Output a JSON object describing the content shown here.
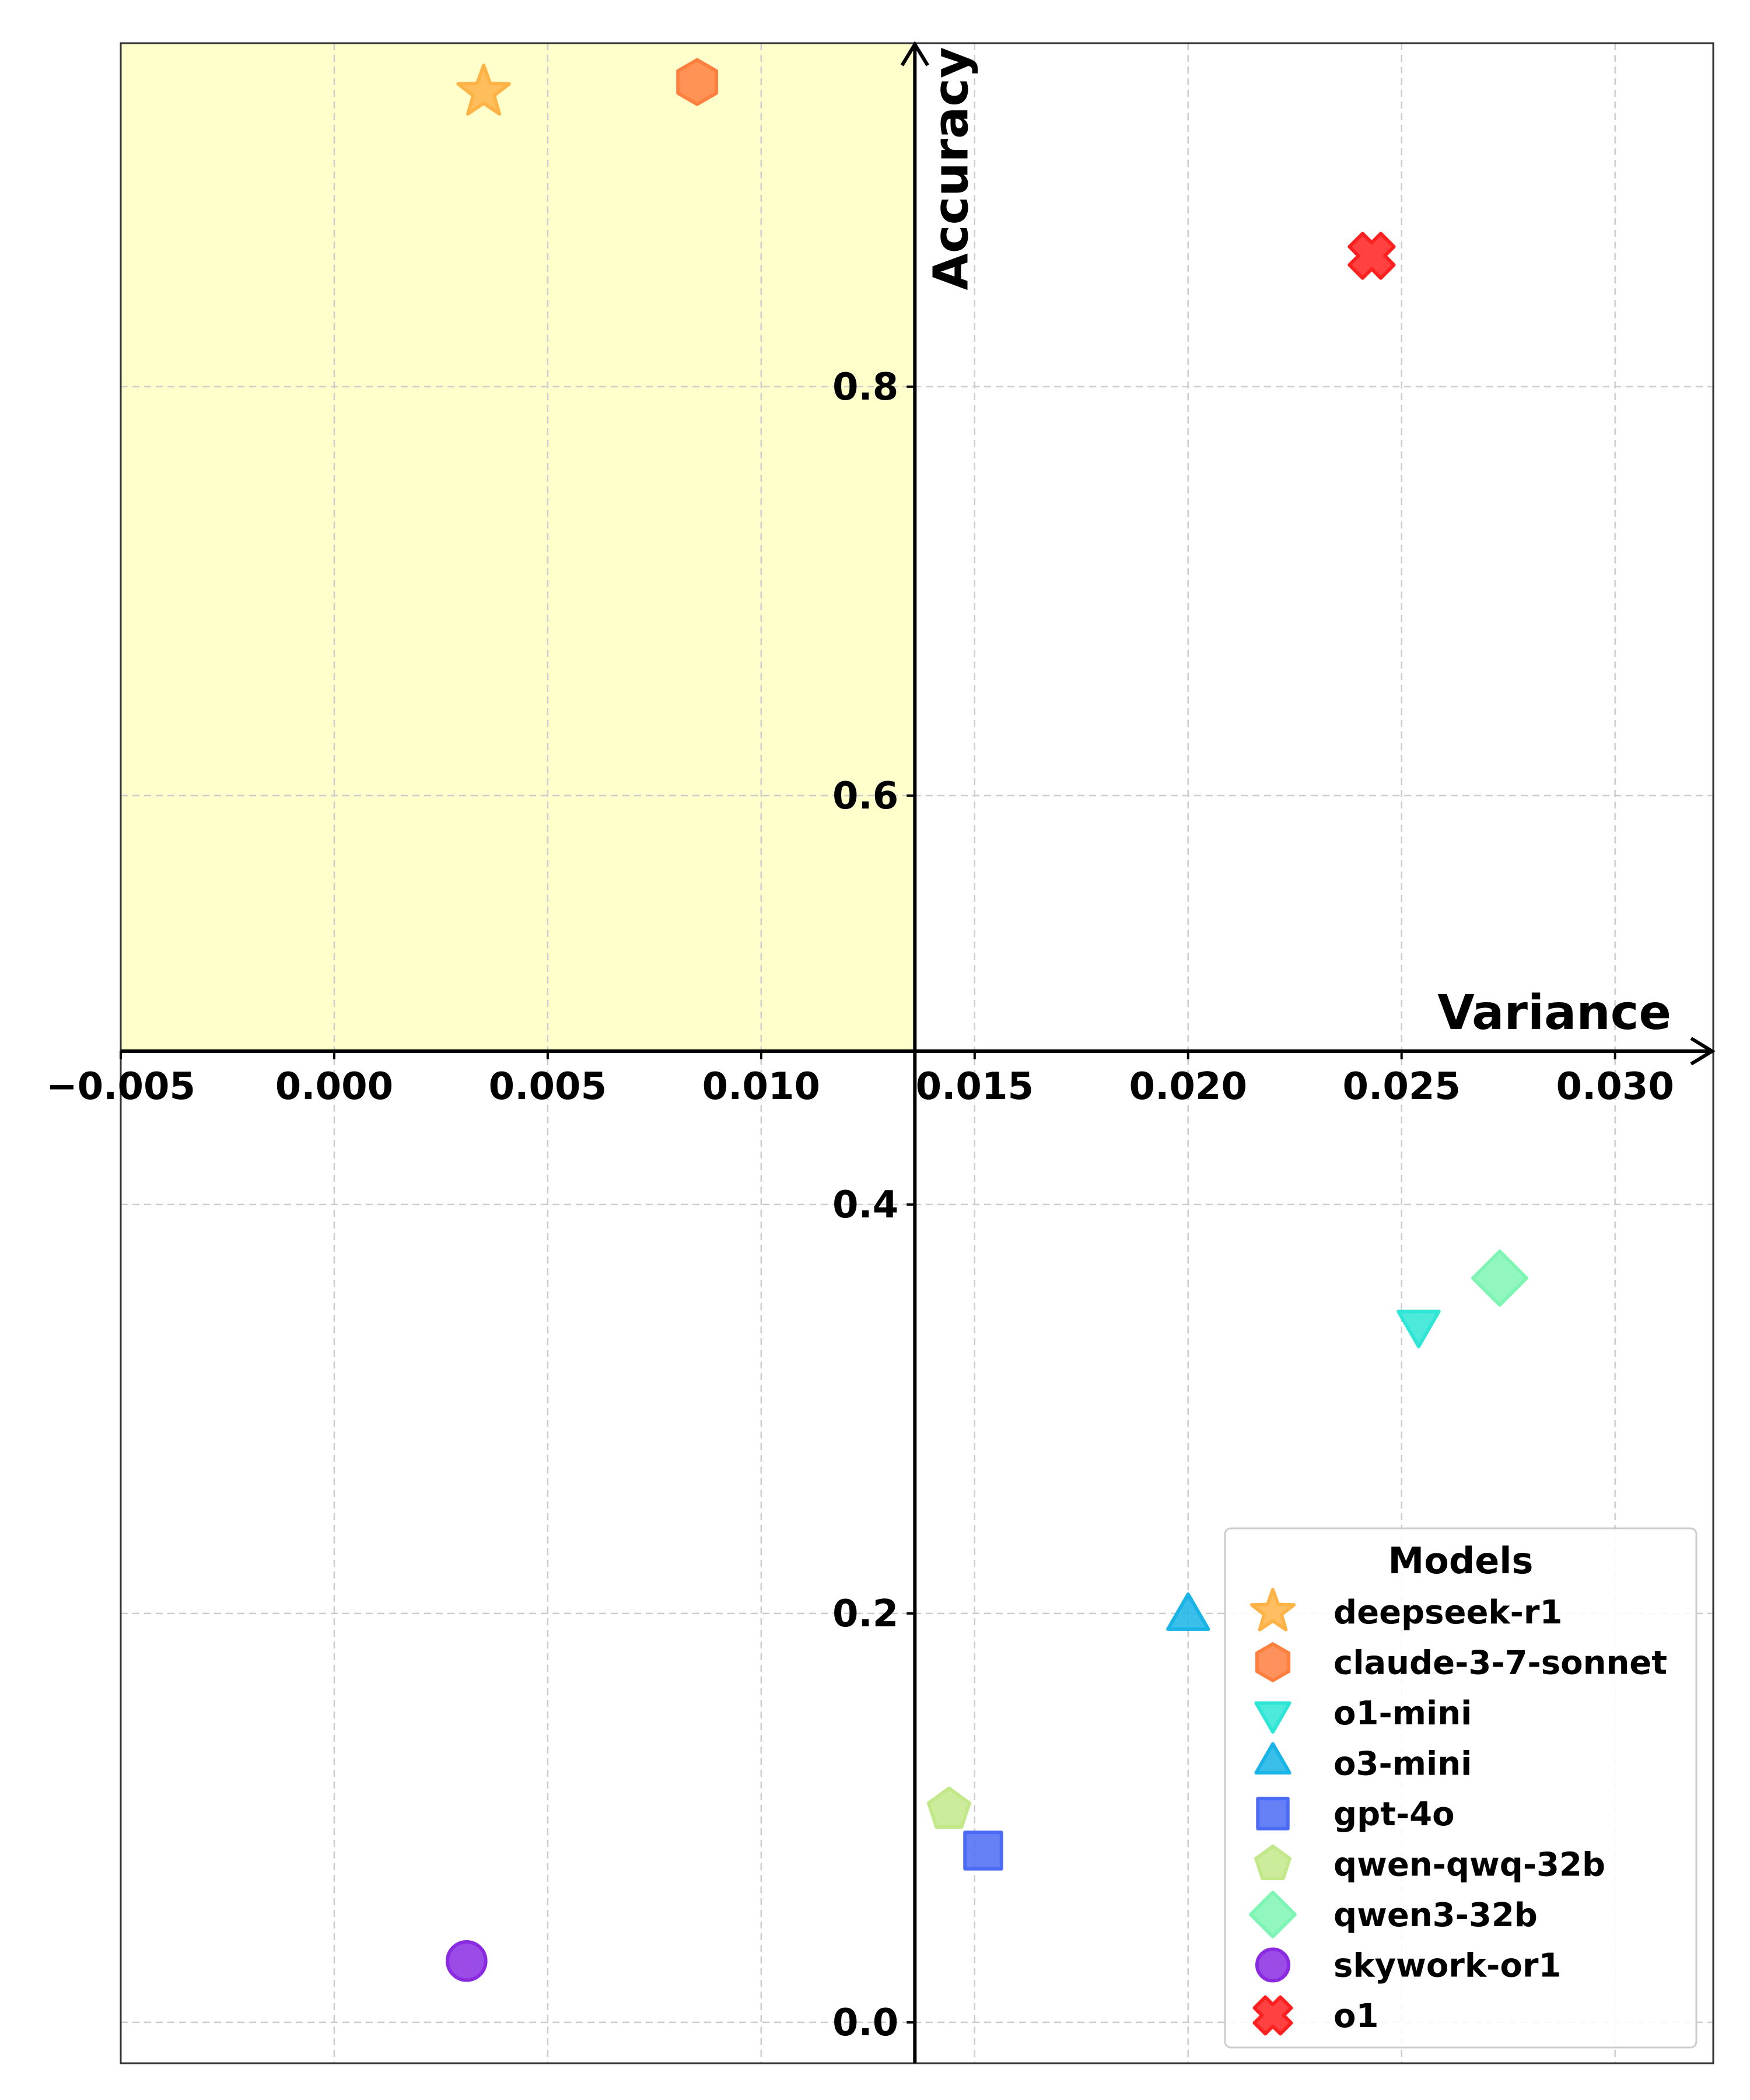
{
  "chart_data": {
    "type": "scatter",
    "xlabel": "Variance",
    "ylabel": "Accuracy",
    "xlim": [
      -0.005,
      0.0323
    ],
    "ylim": [
      -0.02,
      0.968
    ],
    "x_ticks": [
      -0.005,
      0.0,
      0.005,
      0.01,
      0.015,
      0.02,
      0.025,
      0.03
    ],
    "x_tick_labels": [
      "−0.005",
      "0.000",
      "0.005",
      "0.010",
      "0.015",
      "0.020",
      "0.025",
      "0.030"
    ],
    "y_ticks": [
      0.0,
      0.2,
      0.4,
      0.6,
      0.8
    ],
    "y_tick_labels": [
      "0.0",
      "0.2",
      "0.4",
      "0.6",
      "0.8"
    ],
    "axes_origin": {
      "x": 0.0136,
      "y": 0.475
    },
    "highlight_region": {
      "x": [
        -0.005,
        0.0136
      ],
      "y": [
        0.475,
        0.968
      ],
      "color": "#ffffcc"
    },
    "grid": true,
    "legend_title": "Models",
    "legend_position": "lower-right",
    "series": [
      {
        "name": "deepseek-r1",
        "x": 0.0035,
        "y": 0.944,
        "marker": "star",
        "color": "#ffb347"
      },
      {
        "name": "claude-3-7-sonnet",
        "x": 0.0085,
        "y": 0.949,
        "marker": "hexagon",
        "color": "#ff7f3f"
      },
      {
        "name": "o1-mini",
        "x": 0.0254,
        "y": 0.342,
        "marker": "triangle-down",
        "color": "#2ee6d6"
      },
      {
        "name": "o3-mini",
        "x": 0.02,
        "y": 0.198,
        "marker": "triangle-up",
        "color": "#18b4e6"
      },
      {
        "name": "gpt-4o",
        "x": 0.0152,
        "y": 0.084,
        "marker": "square",
        "color": "#4b6bf5"
      },
      {
        "name": "qwen-qwq-32b",
        "x": 0.0144,
        "y": 0.104,
        "marker": "pentagon",
        "color": "#c3e88a"
      },
      {
        "name": "qwen3-32b",
        "x": 0.0273,
        "y": 0.364,
        "marker": "diamond",
        "color": "#7ff5b4"
      },
      {
        "name": "skywork-or1",
        "x": 0.0031,
        "y": 0.03,
        "marker": "circle",
        "color": "#8a2be2"
      },
      {
        "name": "o1",
        "x": 0.0243,
        "y": 0.864,
        "marker": "x",
        "color": "#ff2020"
      }
    ]
  }
}
